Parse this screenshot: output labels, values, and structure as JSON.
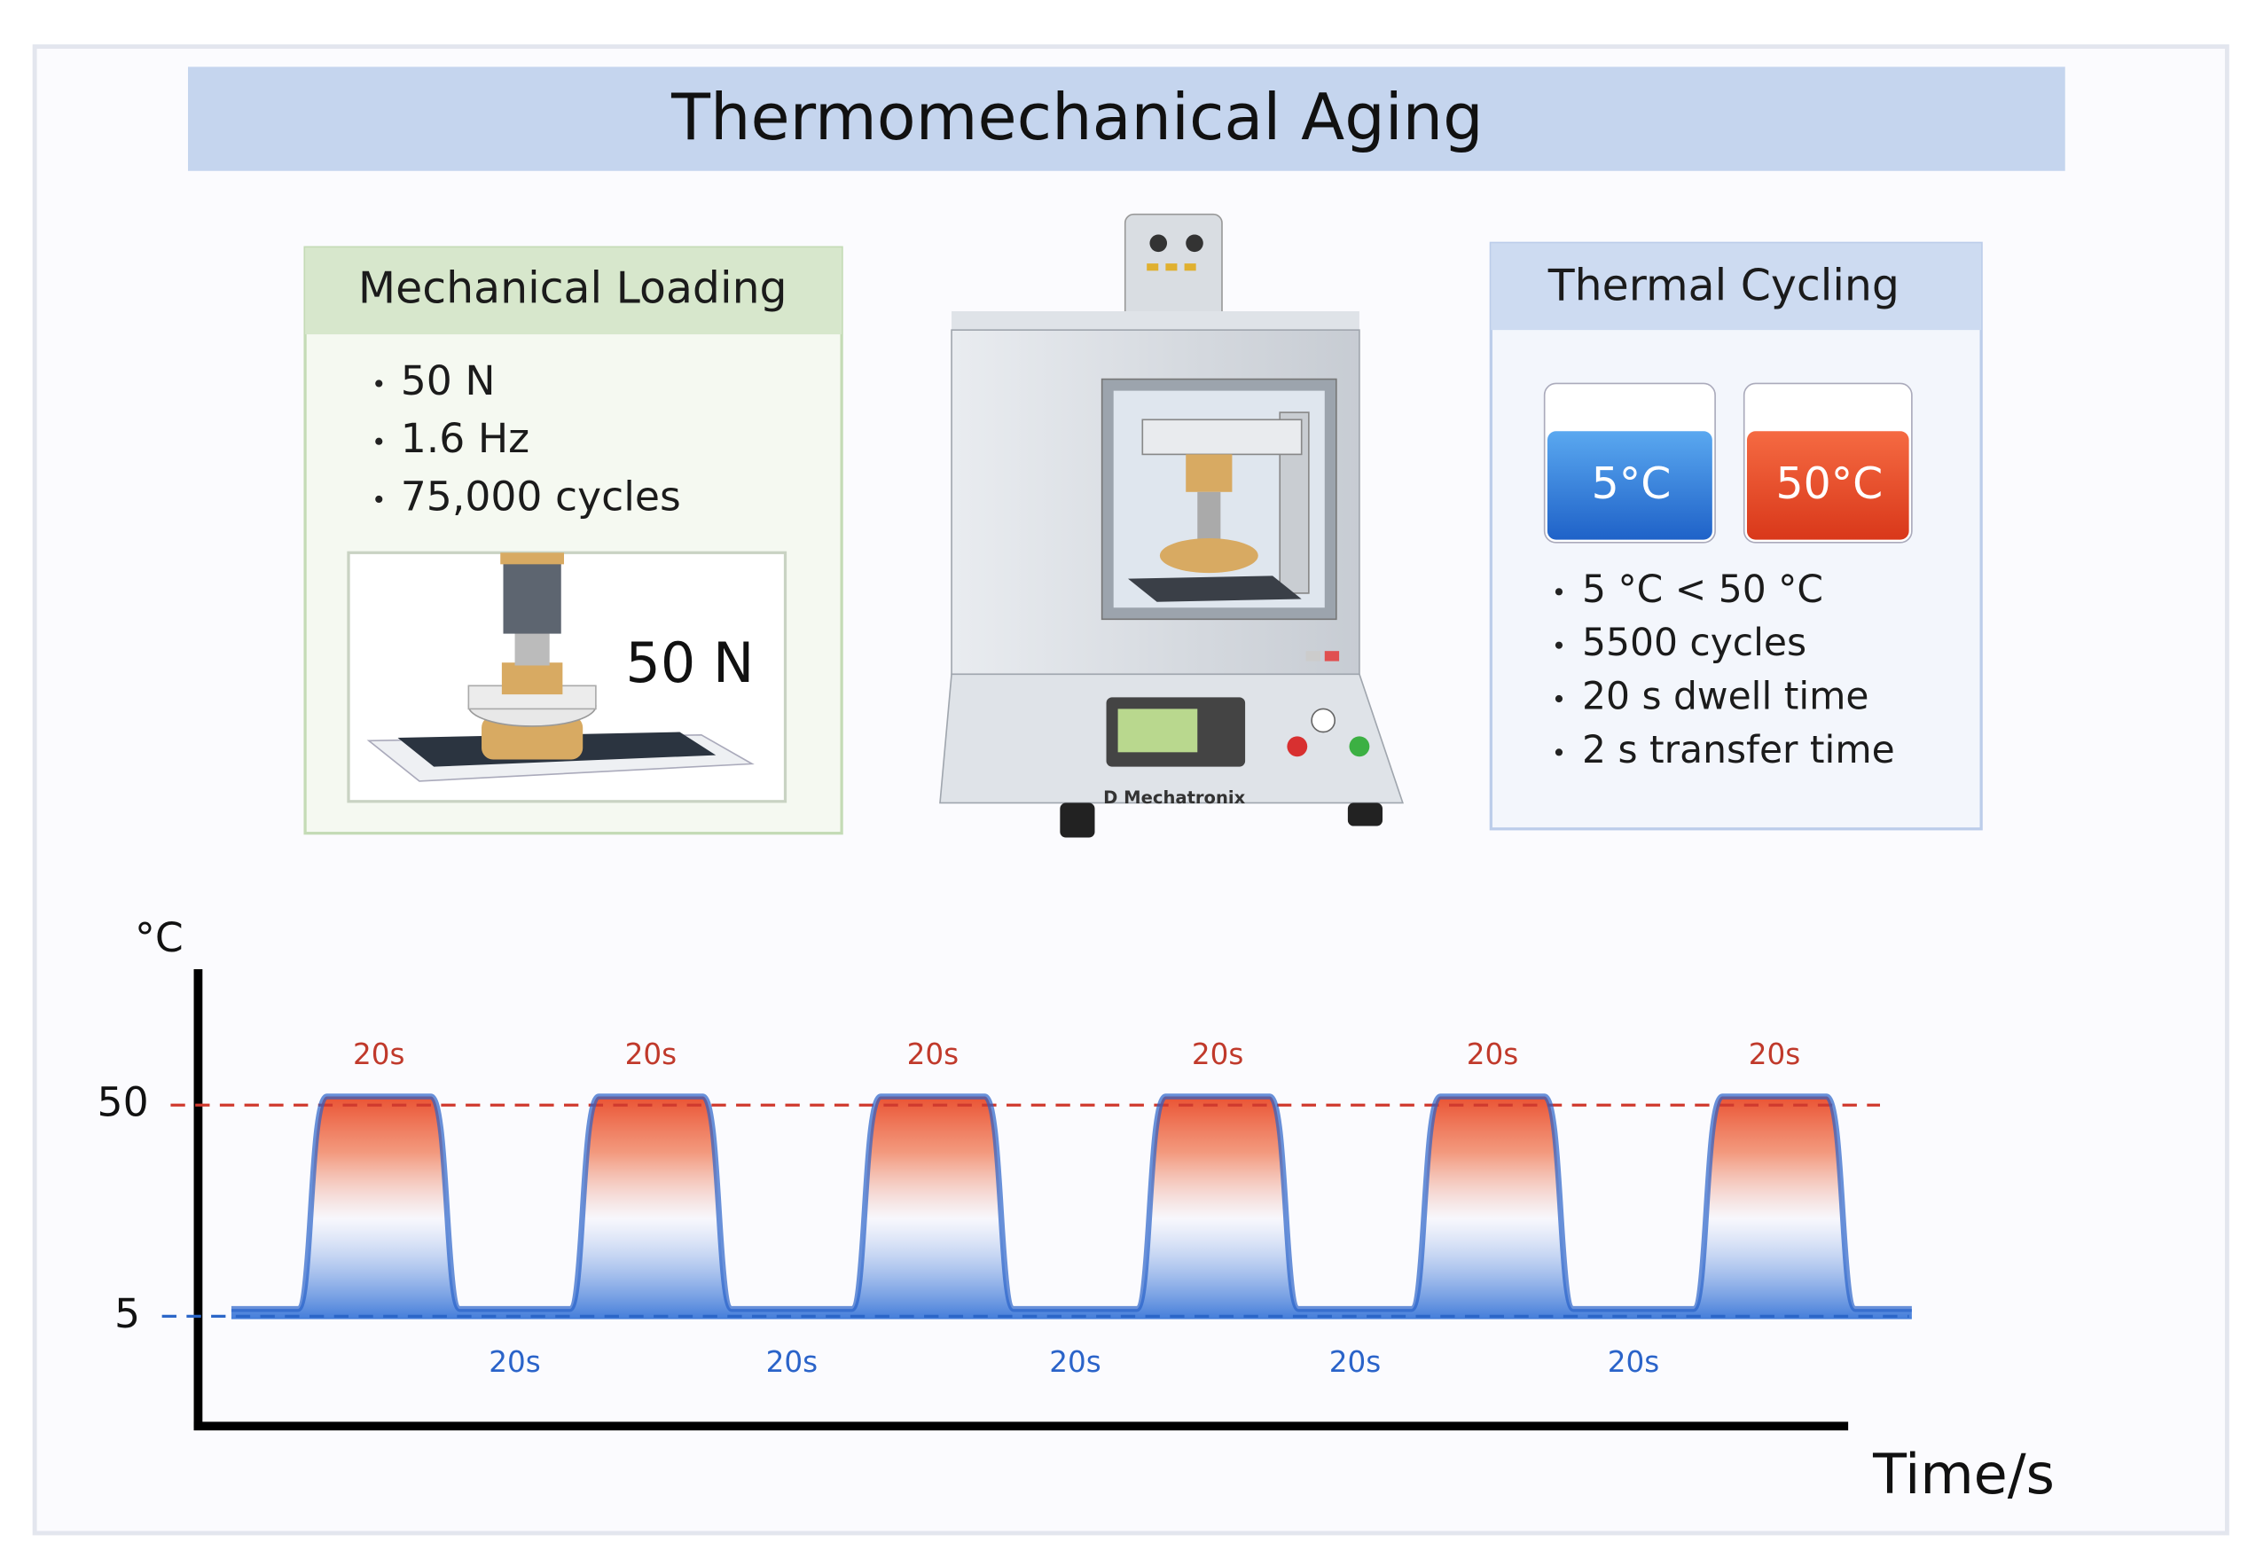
{
  "title": "Thermomechanical Aging",
  "mechanical": {
    "title": "Mechanical Loading",
    "items": [
      "50 N",
      "1.6 Hz",
      "75,000 cycles"
    ],
    "illustration_label": "50 N"
  },
  "machine": {
    "brand": "D Mechatronix"
  },
  "thermal": {
    "title": "Thermal Cycling",
    "baths": [
      "5°C",
      "50°C"
    ],
    "items": [
      "5 °C < 50 °C",
      "5500 cycles",
      "20 s dwell time",
      "2 s transfer time"
    ]
  },
  "profile": {
    "y_unit": "°C",
    "x_label": "Time/s",
    "y_labels": [
      "50",
      "5"
    ],
    "dwell_high": [
      "20s",
      "20s",
      "20s",
      "20s",
      "20s",
      "20s"
    ],
    "dwell_low": [
      "20s",
      "20s",
      "20s",
      "20s",
      "20s"
    ]
  }
}
